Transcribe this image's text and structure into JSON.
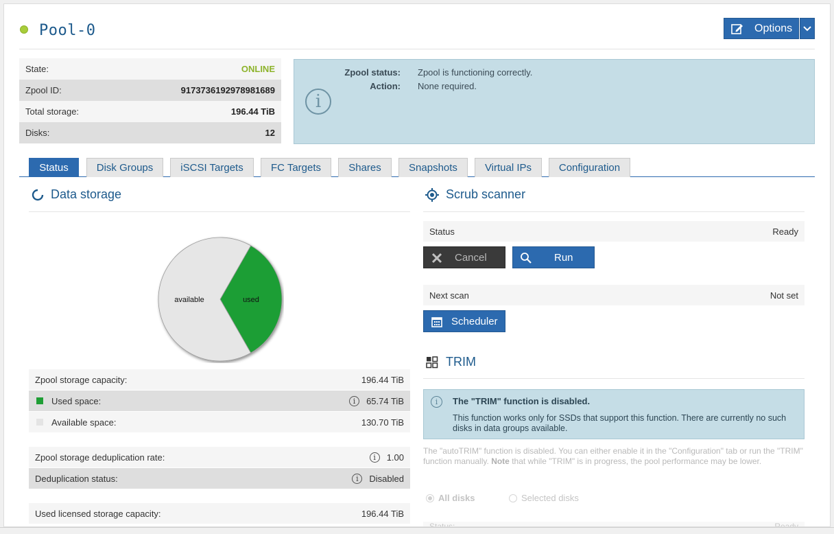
{
  "header": {
    "pool_name": "Pool-0",
    "status_color": "#a8cd3a",
    "options_label": "Options"
  },
  "info": {
    "rows": [
      {
        "label": "State:",
        "value": "ONLINE"
      },
      {
        "label": "Zpool ID:",
        "value": "9173736192978981689"
      },
      {
        "label": "Total storage:",
        "value": "196.44 TiB"
      },
      {
        "label": "Disks:",
        "value": "12"
      }
    ]
  },
  "zpool_status": {
    "status_label": "Zpool status:",
    "status_value": "Zpool is functioning correctly.",
    "action_label": "Action:",
    "action_value": "None required."
  },
  "tabs": [
    "Status",
    "Disk Groups",
    "iSCSI Targets",
    "FC Targets",
    "Shares",
    "Snapshots",
    "Virtual IPs",
    "Configuration"
  ],
  "data_storage": {
    "title": "Data storage",
    "chart_data": {
      "type": "pie",
      "slices": [
        {
          "label": "available",
          "value": 130.7,
          "color": "#e6e6e6"
        },
        {
          "label": "used",
          "value": 65.74,
          "color": "#1f9e35"
        }
      ]
    },
    "capacity_label": "Zpool storage capacity:",
    "capacity_value": "196.44 TiB",
    "used_label": "Used space:",
    "used_value": "65.74 TiB",
    "available_label": "Available space:",
    "available_value": "130.70 TiB",
    "dedup_rate_label": "Zpool storage deduplication rate:",
    "dedup_rate_value": "1.00",
    "dedup_status_label": "Deduplication status:",
    "dedup_status_value": "Disabled",
    "licensed_label": "Used licensed storage capacity:",
    "licensed_value": "196.44 TiB"
  },
  "scrub": {
    "title": "Scrub scanner",
    "status_label": "Status",
    "status_value": "Ready",
    "cancel_label": "Cancel",
    "run_label": "Run",
    "next_scan_label": "Next scan",
    "next_scan_value": "Not set",
    "scheduler_label": "Scheduler"
  },
  "trim": {
    "title": "TRIM",
    "alert_title": "The \"TRIM\" function is disabled.",
    "alert_text": "This function works only for SSDs that support this function. There are currently no such disks in data groups available.",
    "note_part1": "The \"autoTRIM\" function is disabled. You can either enable it in the \"Configuration\" tab or run the \"TRIM\" function manually.",
    "note_bold": "Note",
    "note_part2": "that while \"TRIM\" is in progress, the pool performance may be lower.",
    "all_disks_label": "All disks",
    "selected_disks_label": "Selected disks",
    "status_label": "Status:",
    "status_value": "Ready"
  }
}
